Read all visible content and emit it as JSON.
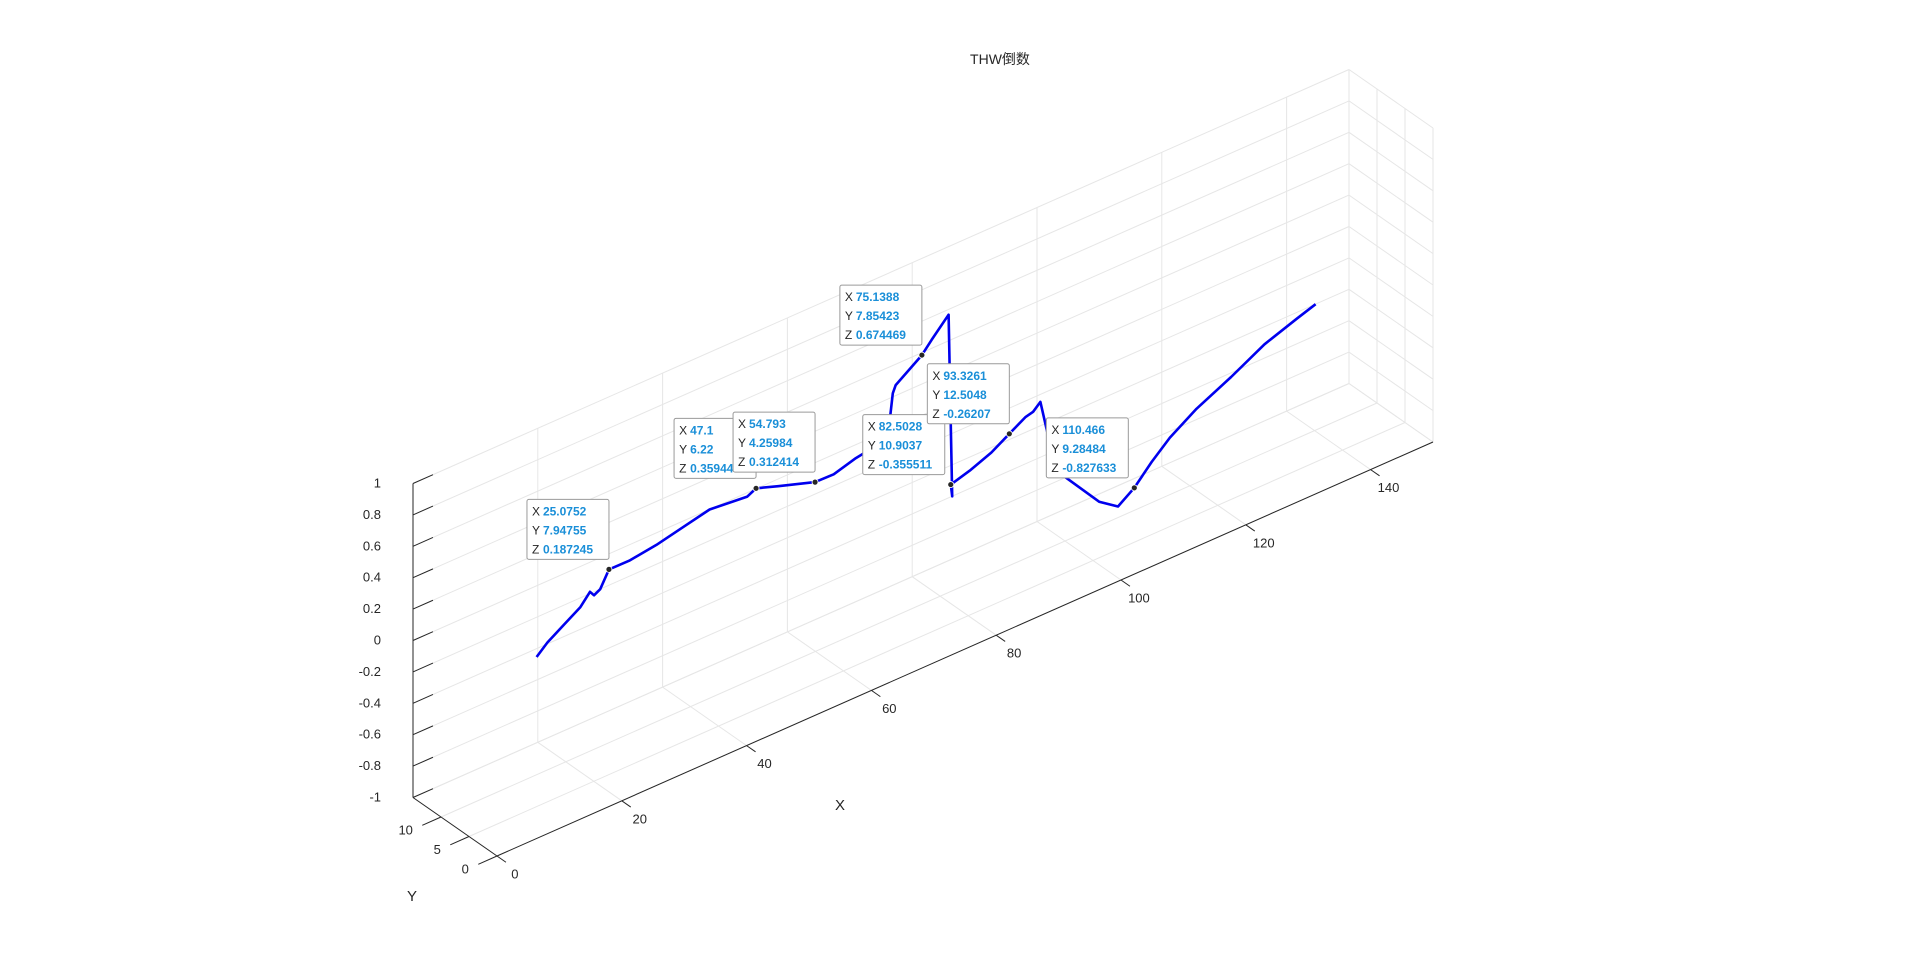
{
  "chart_data": {
    "type": "line",
    "title": "THW倒数",
    "xlabel": "X",
    "ylabel": "Y",
    "zlabel": "",
    "xlim": [
      0,
      150
    ],
    "ylim": [
      0,
      15
    ],
    "zlim": [
      -1,
      1
    ],
    "x_ticks": [
      0,
      20,
      40,
      60,
      80,
      100,
      120,
      140
    ],
    "x_tick_labels": [
      "0",
      "20",
      "40",
      "60",
      "80",
      "100",
      "120",
      "140"
    ],
    "y_ticks": [
      0,
      5,
      10
    ],
    "y_tick_labels": [
      "0",
      "5",
      "10"
    ],
    "z_ticks": [
      1,
      0.8,
      0.6,
      0.4,
      0.2,
      0,
      -0.2,
      -0.4,
      -0.6,
      -0.8,
      -1
    ],
    "z_tick_labels": [
      "1",
      "0.8",
      "0.6",
      "0.4",
      "0.2",
      "0",
      "-0.2",
      "-0.4",
      "-0.6",
      "-0.8",
      "-1"
    ],
    "grid": true,
    "line_color": "#0000ee",
    "series": [
      {
        "points": [
          [
            12,
            6.3,
            -0.1
          ],
          [
            14,
            6.6,
            -0.05
          ],
          [
            17,
            7.0,
            0.0
          ],
          [
            20,
            7.4,
            0.05
          ],
          [
            22,
            7.9,
            0.1
          ],
          [
            23,
            8.3,
            0.05
          ],
          [
            23.8,
            8.1,
            0.08
          ],
          [
            25.0752,
            7.94755,
            0.187245
          ],
          [
            28,
            7.6,
            0.2
          ],
          [
            32,
            7.2,
            0.24
          ],
          [
            36,
            6.9,
            0.29
          ],
          [
            40,
            6.6,
            0.34
          ],
          [
            45.5,
            6.0,
            0.34
          ],
          [
            47.1,
            6.22,
            0.359449
          ],
          [
            50,
            5.5,
            0.34
          ],
          [
            54.793,
            4.25984,
            0.312414
          ],
          [
            58,
            4.5,
            0.3
          ],
          [
            62,
            5.0,
            0.32
          ],
          [
            67,
            5.5,
            0.33
          ],
          [
            68,
            5.7,
            0.42
          ],
          [
            69,
            6.2,
            0.58
          ],
          [
            70,
            6.8,
            0.6
          ],
          [
            75.1388,
            7.85423,
            0.674469
          ],
          [
            77,
            8.2,
            0.73
          ],
          [
            80,
            8.5,
            0.83
          ],
          [
            82.2,
            10.3,
            -0.41
          ],
          [
            82.5028,
            10.9037,
            -0.355511
          ],
          [
            86,
            11.4,
            -0.34
          ],
          [
            90,
            12.0,
            -0.31
          ],
          [
            93.3261,
            12.5048,
            -0.26207
          ],
          [
            95.5,
            12.0,
            -0.18
          ],
          [
            96.5,
            11.8,
            -0.16
          ],
          [
            97.5,
            11.6,
            -0.11
          ],
          [
            100,
            11.6,
            -0.59
          ],
          [
            106,
            10.6,
            -0.87
          ],
          [
            108.5,
            10.0,
            -0.93
          ],
          [
            110.466,
            9.28484,
            -0.827633
          ],
          [
            113,
            9.0,
            -0.7
          ],
          [
            116,
            9.1,
            -0.6
          ],
          [
            120,
            8.8,
            -0.48
          ],
          [
            125,
            8.2,
            -0.35
          ],
          [
            130,
            7.8,
            -0.22
          ],
          [
            135,
            7.6,
            -0.14
          ],
          [
            138,
            7.6,
            -0.1
          ]
        ]
      }
    ],
    "datatips": [
      {
        "x": "25.0752",
        "y": "7.94755",
        "z": "0.187245"
      },
      {
        "x": "47.1",
        "y": "6.22",
        "z": "0.359449"
      },
      {
        "x": "54.793",
        "y": "4.25984",
        "z": "0.312414"
      },
      {
        "x": "75.1388",
        "y": "7.85423",
        "z": "0.674469"
      },
      {
        "x": "82.5028",
        "y": "10.9037",
        "z": "-0.355511"
      },
      {
        "x": "93.3261",
        "y": "12.5048",
        "z": "-0.26207"
      },
      {
        "x": "110.466",
        "y": "9.28484",
        "z": "-0.827633"
      }
    ],
    "datatip_key_labels": {
      "x": "X",
      "y": "Y",
      "z": "Z"
    }
  }
}
